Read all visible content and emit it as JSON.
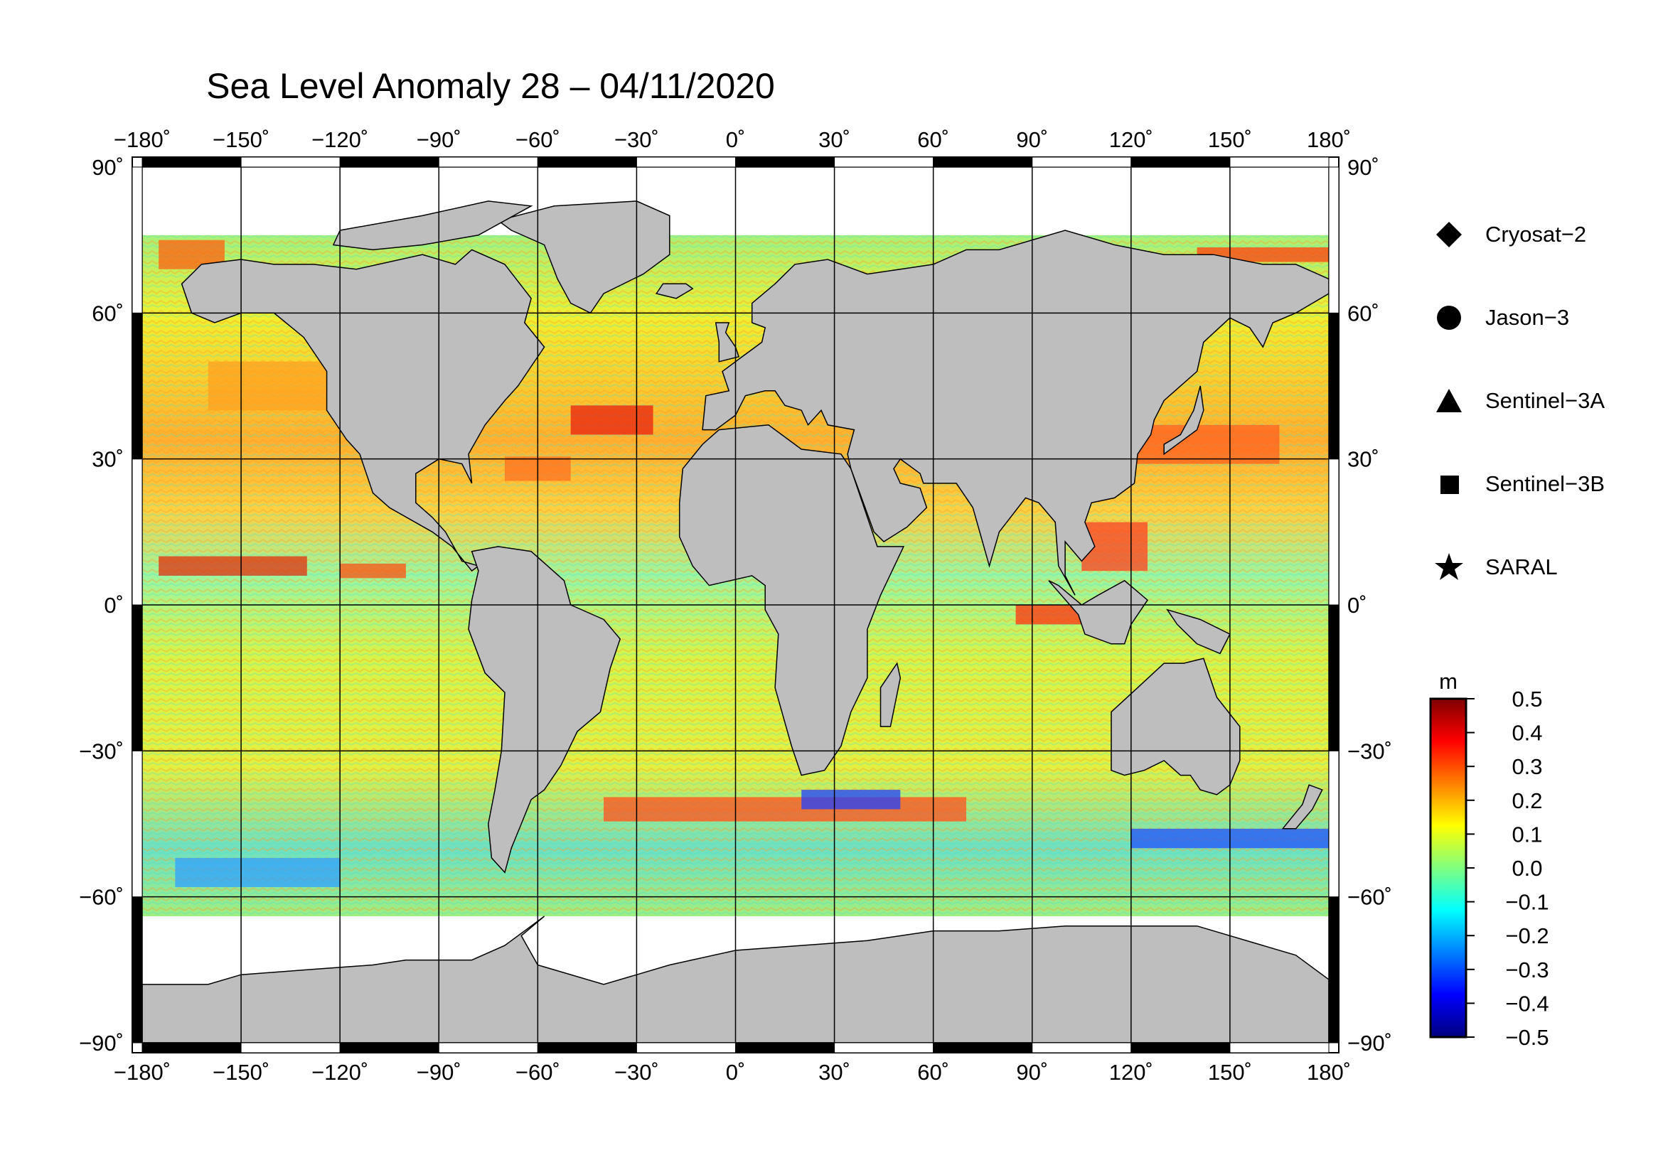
{
  "title": "Sea Level Anomaly 28 – 04/11/2020",
  "map": {
    "projection": "equirectangular",
    "lon_range": [
      -180,
      180
    ],
    "lat_range": [
      -90,
      90
    ],
    "grid_lon": [
      -180,
      -150,
      -120,
      -90,
      -60,
      -30,
      0,
      30,
      60,
      90,
      120,
      150,
      180
    ],
    "grid_lat": [
      -90,
      -60,
      -30,
      0,
      30,
      60,
      90
    ],
    "lon_ticks": [
      "−180˚",
      "−150˚",
      "−120˚",
      "−90˚",
      "−60˚",
      "−30˚",
      "0˚",
      "30˚",
      "60˚",
      "90˚",
      "120˚",
      "150˚",
      "180˚"
    ],
    "lat_ticks_left": [
      "90˚",
      "60˚",
      "30˚",
      "0˚",
      "−30˚",
      "−60˚",
      "−90˚"
    ],
    "lat_ticks_right": [
      "90˚",
      "60˚",
      "30˚",
      "0˚",
      "−30˚",
      "−60˚",
      "−90˚"
    ],
    "land_color": "#bebebe",
    "ocean_base_color": "#ffff33",
    "no_data_color": "#ffffff",
    "ocean_coverage_lat": [
      -64,
      76
    ]
  },
  "legend": {
    "items": [
      {
        "symbol": "diamond",
        "label": "Cryosat−2"
      },
      {
        "symbol": "circle",
        "label": "Jason−3"
      },
      {
        "symbol": "triangle",
        "label": "Sentinel−3A"
      },
      {
        "symbol": "square",
        "label": "Sentinel−3B"
      },
      {
        "symbol": "star",
        "label": "SARAL"
      }
    ]
  },
  "colorbar": {
    "unit": "m",
    "min": -0.5,
    "max": 0.5,
    "tick_labels": [
      "0.5",
      "0.4",
      "0.3",
      "0.2",
      "0.1",
      "0.0",
      "−0.1",
      "−0.2",
      "−0.3",
      "−0.4",
      "−0.5"
    ],
    "colors": [
      "#00007f",
      "#0000ff",
      "#007fff",
      "#00ffff",
      "#7fff7f",
      "#ffff00",
      "#ff7f00",
      "#ff0000",
      "#7f0000"
    ]
  }
}
